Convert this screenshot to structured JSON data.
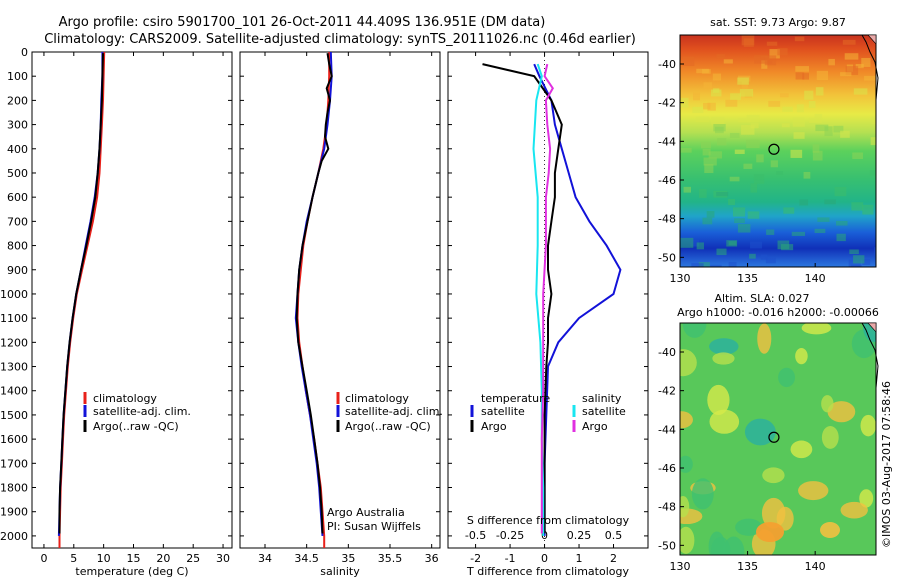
{
  "header": {
    "line1": "Argo profile: csiro 5901700_101 26-Oct-2011 44.409S 136.951E (DM data)",
    "line2": "Climatology: CARS2009. Satellite-adjusted climatology: synTS_20111026.nc (0.46d earlier)"
  },
  "side_label": "©IMOS 03-Aug-2017 07:58:46",
  "colors": {
    "climatology": "#e8211a",
    "satellite": "#1212d8",
    "argo": "#000000",
    "sat_s": "#19e6f0",
    "argo_s": "#e030e0"
  },
  "chart_data": [
    {
      "type": "line",
      "xlabel": "temperature (deg C)",
      "xticks": [
        0,
        5,
        10,
        15,
        20,
        25,
        30
      ],
      "xlim": [
        -2,
        31.5
      ],
      "yticks": [
        0,
        100,
        200,
        300,
        400,
        500,
        600,
        700,
        800,
        900,
        1000,
        1100,
        1200,
        1300,
        1400,
        1500,
        1600,
        1700,
        1800,
        1900,
        2000
      ],
      "ylim": [
        2050,
        0
      ],
      "legend": {
        "items": [
          "climatology",
          "satellite-adj. clim.",
          "Argo(..raw -QC)"
        ]
      },
      "series": [
        {
          "name": "climatology",
          "color": "#e8211a",
          "points": [
            [
              10.1,
              0
            ],
            [
              10.0,
              100
            ],
            [
              9.9,
              200
            ],
            [
              9.7,
              300
            ],
            [
              9.5,
              400
            ],
            [
              9.3,
              500
            ],
            [
              8.9,
              600
            ],
            [
              8.2,
              700
            ],
            [
              7.3,
              800
            ],
            [
              6.4,
              900
            ],
            [
              5.5,
              1000
            ],
            [
              4.9,
              1100
            ],
            [
              4.4,
              1200
            ],
            [
              4.0,
              1300
            ],
            [
              3.7,
              1400
            ],
            [
              3.4,
              1500
            ],
            [
              3.2,
              1600
            ],
            [
              3.0,
              1700
            ],
            [
              2.8,
              1800
            ],
            [
              2.7,
              1900
            ],
            [
              2.6,
              2000
            ],
            [
              2.6,
              2050
            ]
          ]
        },
        {
          "name": "satellite-adj. clim.",
          "color": "#1212d8",
          "points": [
            [
              9.8,
              0
            ],
            [
              9.8,
              100
            ],
            [
              9.6,
              200
            ],
            [
              9.5,
              300
            ],
            [
              9.3,
              400
            ],
            [
              9.0,
              500
            ],
            [
              8.5,
              600
            ],
            [
              7.8,
              700
            ],
            [
              7.0,
              800
            ],
            [
              6.2,
              900
            ],
            [
              5.4,
              1000
            ],
            [
              4.8,
              1100
            ],
            [
              4.3,
              1200
            ],
            [
              3.9,
              1300
            ],
            [
              3.6,
              1400
            ],
            [
              3.3,
              1500
            ],
            [
              3.1,
              1600
            ],
            [
              2.9,
              1700
            ],
            [
              2.7,
              1800
            ],
            [
              2.6,
              1900
            ],
            [
              2.5,
              2000
            ]
          ]
        },
        {
          "name": "Argo(..raw -QC)",
          "color": "#000000",
          "points": [
            [
              9.9,
              5
            ],
            [
              9.8,
              100
            ],
            [
              9.7,
              200
            ],
            [
              9.5,
              300
            ],
            [
              9.3,
              400
            ],
            [
              9.0,
              500
            ],
            [
              8.6,
              600
            ],
            [
              7.9,
              700
            ],
            [
              7.1,
              800
            ],
            [
              6.2,
              900
            ],
            [
              5.4,
              1000
            ],
            [
              4.8,
              1100
            ],
            [
              4.3,
              1200
            ],
            [
              3.9,
              1300
            ],
            [
              3.6,
              1400
            ],
            [
              3.3,
              1500
            ],
            [
              3.1,
              1600
            ],
            [
              2.9,
              1700
            ],
            [
              2.7,
              1800
            ],
            [
              2.6,
              1900
            ],
            [
              2.6,
              1990
            ]
          ]
        }
      ]
    },
    {
      "type": "line",
      "xlabel": "salinity",
      "xticks": [
        34,
        34.5,
        35,
        35.5,
        36
      ],
      "xlim": [
        33.7,
        36.1
      ],
      "ylim": [
        2050,
        0
      ],
      "legend": {
        "items": [
          "climatology",
          "satellite-adj. clim.",
          "Argo(..raw -QC)"
        ]
      },
      "annotation": [
        "Argo Australia",
        "PI: Susan Wijffels"
      ],
      "series": [
        {
          "name": "climatology",
          "color": "#e8211a",
          "points": [
            [
              34.77,
              0
            ],
            [
              34.77,
              100
            ],
            [
              34.76,
              200
            ],
            [
              34.74,
              300
            ],
            [
              34.7,
              400
            ],
            [
              34.64,
              500
            ],
            [
              34.57,
              600
            ],
            [
              34.51,
              700
            ],
            [
              34.46,
              800
            ],
            [
              34.43,
              900
            ],
            [
              34.4,
              1000
            ],
            [
              34.39,
              1100
            ],
            [
              34.41,
              1200
            ],
            [
              34.45,
              1300
            ],
            [
              34.49,
              1400
            ],
            [
              34.54,
              1500
            ],
            [
              34.59,
              1600
            ],
            [
              34.63,
              1700
            ],
            [
              34.67,
              1800
            ],
            [
              34.69,
              1900
            ],
            [
              34.71,
              2000
            ],
            [
              34.71,
              2050
            ]
          ]
        },
        {
          "name": "satellite-adj. clim.",
          "color": "#1212d8",
          "points": [
            [
              34.79,
              0
            ],
            [
              34.8,
              100
            ],
            [
              34.78,
              200
            ],
            [
              34.75,
              300
            ],
            [
              34.71,
              400
            ],
            [
              34.64,
              500
            ],
            [
              34.57,
              600
            ],
            [
              34.5,
              700
            ],
            [
              34.45,
              800
            ],
            [
              34.41,
              900
            ],
            [
              34.39,
              1000
            ],
            [
              34.37,
              1100
            ],
            [
              34.4,
              1200
            ],
            [
              34.44,
              1300
            ],
            [
              34.49,
              1400
            ],
            [
              34.54,
              1500
            ],
            [
              34.58,
              1600
            ],
            [
              34.62,
              1700
            ],
            [
              34.65,
              1800
            ],
            [
              34.67,
              1900
            ],
            [
              34.69,
              2000
            ]
          ]
        },
        {
          "name": "Argo(..raw -QC)",
          "color": "#000000",
          "points": [
            [
              34.75,
              5
            ],
            [
              34.77,
              50
            ],
            [
              34.8,
              100
            ],
            [
              34.74,
              150
            ],
            [
              34.78,
              200
            ],
            [
              34.75,
              250
            ],
            [
              34.73,
              300
            ],
            [
              34.72,
              350
            ],
            [
              34.76,
              400
            ],
            [
              34.68,
              450
            ],
            [
              34.64,
              500
            ],
            [
              34.57,
              600
            ],
            [
              34.51,
              700
            ],
            [
              34.45,
              800
            ],
            [
              34.41,
              900
            ],
            [
              34.39,
              1000
            ],
            [
              34.38,
              1100
            ],
            [
              34.4,
              1200
            ],
            [
              34.45,
              1300
            ],
            [
              34.5,
              1400
            ],
            [
              34.55,
              1500
            ],
            [
              34.59,
              1600
            ],
            [
              34.63,
              1700
            ],
            [
              34.66,
              1800
            ],
            [
              34.68,
              1900
            ],
            [
              34.69,
              1990
            ]
          ]
        }
      ]
    },
    {
      "type": "line",
      "xlabel": "T difference from climatology",
      "xlabel_top": "S difference from climatology",
      "xticks": [
        -2,
        -1,
        0,
        1,
        2
      ],
      "xticks_top": [
        "-0.5",
        "-0.25",
        "0",
        "0.25",
        "0.5"
      ],
      "xlim": [
        -2.8,
        3.0
      ],
      "ylim": [
        2050,
        0
      ],
      "legend": {
        "temperature_title": "temperature",
        "salinity_title": "salinity",
        "items": [
          "satellite",
          "Argo",
          "satellite",
          "Argo"
        ]
      },
      "series": [
        {
          "name": "satellite",
          "group": "temperature",
          "color": "#1212d8",
          "points": [
            [
              -0.3,
              50
            ],
            [
              -0.15,
              100
            ],
            [
              0.2,
              200
            ],
            [
              0.3,
              300
            ],
            [
              0.5,
              400
            ],
            [
              0.7,
              500
            ],
            [
              0.9,
              600
            ],
            [
              1.3,
              700
            ],
            [
              1.8,
              800
            ],
            [
              2.2,
              900
            ],
            [
              2.0,
              1000
            ],
            [
              1.0,
              1100
            ],
            [
              0.4,
              1200
            ],
            [
              0.1,
              1300
            ],
            [
              0.05,
              1500
            ],
            [
              0.0,
              1700
            ],
            [
              0.0,
              1900
            ],
            [
              0.0,
              2000
            ]
          ]
        },
        {
          "name": "Argo",
          "group": "temperature",
          "color": "#000000",
          "points": [
            [
              -1.8,
              50
            ],
            [
              -0.3,
              100
            ],
            [
              0.2,
              200
            ],
            [
              0.5,
              300
            ],
            [
              0.4,
              400
            ],
            [
              0.3,
              500
            ],
            [
              0.3,
              600
            ],
            [
              0.2,
              700
            ],
            [
              0.1,
              800
            ],
            [
              0.1,
              900
            ],
            [
              0.2,
              1000
            ],
            [
              0.1,
              1100
            ],
            [
              0.1,
              1200
            ],
            [
              0.05,
              1300
            ],
            [
              0.0,
              1500
            ],
            [
              0.0,
              1700
            ],
            [
              0.0,
              1900
            ],
            [
              0.0,
              1990
            ]
          ]
        },
        {
          "name": "satellite",
          "group": "salinity",
          "color": "#19e6f0",
          "points": [
            [
              -0.05,
              50
            ],
            [
              -0.02,
              100
            ],
            [
              -0.06,
              200
            ],
            [
              -0.08,
              400
            ],
            [
              -0.05,
              600
            ],
            [
              -0.05,
              800
            ],
            [
              -0.06,
              1000
            ],
            [
              -0.03,
              1200
            ],
            [
              -0.02,
              1400
            ],
            [
              -0.02,
              1600
            ],
            [
              -0.01,
              1800
            ],
            [
              -0.01,
              2000
            ]
          ]
        },
        {
          "name": "Argo",
          "group": "salinity",
          "color": "#e030e0",
          "points": [
            [
              0.02,
              50
            ],
            [
              0.0,
              100
            ],
            [
              0.06,
              150
            ],
            [
              0.01,
              200
            ],
            [
              0.02,
              300
            ],
            [
              0.04,
              400
            ],
            [
              0.03,
              500
            ],
            [
              0.01,
              600
            ],
            [
              0.01,
              800
            ],
            [
              -0.01,
              1000
            ],
            [
              -0.01,
              1200
            ],
            [
              -0.01,
              1400
            ],
            [
              -0.02,
              1600
            ],
            [
              -0.02,
              1800
            ],
            [
              -0.02,
              1990
            ]
          ]
        }
      ]
    },
    {
      "type": "heatmap",
      "title": "sat. SST: 9.73 Argo: 9.87",
      "xticks": [
        130,
        135,
        140
      ],
      "yticks": [
        -40,
        -42,
        -44,
        -46,
        -48,
        -50
      ],
      "xlim": [
        130,
        144.5
      ],
      "ylim": [
        -50.5,
        -38.5
      ],
      "marker": [
        136.95,
        -44.41
      ]
    },
    {
      "type": "heatmap",
      "title": "Altim. SLA: 0.027",
      "subtitle": "Argo h1000: -0.016 h2000: -0.00066",
      "xticks": [
        130,
        135,
        140
      ],
      "yticks": [
        -40,
        -42,
        -44,
        -46,
        -48,
        -50
      ],
      "xlim": [
        130,
        144.5
      ],
      "ylim": [
        -50.5,
        -38.5
      ],
      "marker": [
        136.95,
        -44.41
      ]
    }
  ]
}
